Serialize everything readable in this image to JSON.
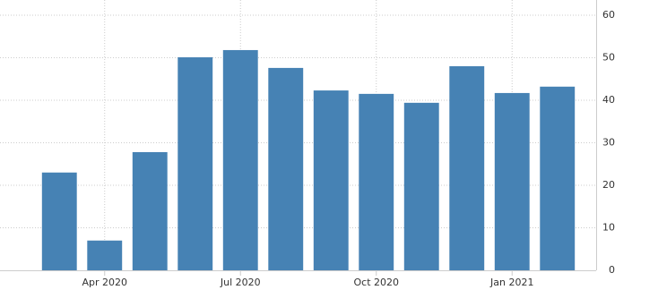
{
  "chart_data": {
    "type": "bar",
    "categories": [
      null,
      "Apr 2020",
      null,
      null,
      "Jul 2020",
      null,
      null,
      "Oct 2020",
      null,
      null,
      "Jan 2021",
      null
    ],
    "values": [
      23,
      7,
      27.8,
      50.1,
      51.8,
      47.6,
      42.3,
      41.5,
      39.4,
      48,
      41.7,
      43.2
    ],
    "color": "#4682b4",
    "ylim": [
      0,
      60
    ],
    "yticks": [
      0,
      10,
      20,
      30,
      40,
      50,
      60
    ],
    "grid": true
  }
}
